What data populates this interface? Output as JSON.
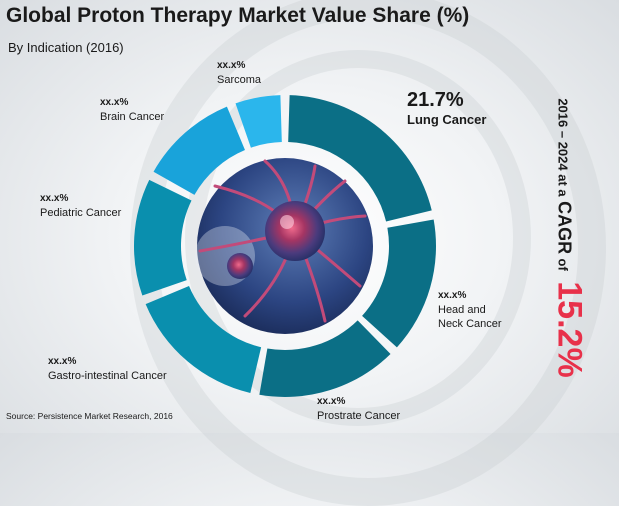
{
  "header": {
    "title": "Global Proton Therapy Market Value Share (%)",
    "subtitle": "By Indication (2016)"
  },
  "source": "Source: Persistence Market Research, 2016",
  "cagr": {
    "prefix": "2016 – 2024 at a",
    "label": "CAGR",
    "connector": "of",
    "value": "15.2%"
  },
  "colors": {
    "dark_teal": "#0b6f86",
    "teal": "#0a8fae",
    "sky": "#19a3da",
    "light_sky": "#2bb6ec",
    "accent_red": "#e8314a"
  },
  "chart_data": {
    "type": "pie",
    "variant": "donut",
    "title": "Global Proton Therapy Market Value Share (%)",
    "subtitle": "By Indication (2016)",
    "slices": [
      {
        "label": "Lung Cancer",
        "value_label": "21.7%",
        "value": 21.7,
        "color": "#0b6f86"
      },
      {
        "label": "Head and Neck Cancer",
        "value_label": "xx.x%",
        "value": 15.5,
        "color": "#0b6f86"
      },
      {
        "label": "Prostrate Cancer",
        "value_label": "xx.x%",
        "value": 16.0,
        "color": "#0b6f86"
      },
      {
        "label": "Gastro-intestinal Cancer",
        "value_label": "xx.x%",
        "value": 16.0,
        "color": "#0a8fae"
      },
      {
        "label": "Pediatric Cancer",
        "value_label": "xx.x%",
        "value": 13.5,
        "color": "#0a8fae"
      },
      {
        "label": "Brain Cancer",
        "value_label": "xx.x%",
        "value": 11.5,
        "color": "#19a3da"
      },
      {
        "label": "Sarcoma",
        "value_label": "xx.x%",
        "value": 5.8,
        "color": "#2bb6ec"
      }
    ]
  }
}
